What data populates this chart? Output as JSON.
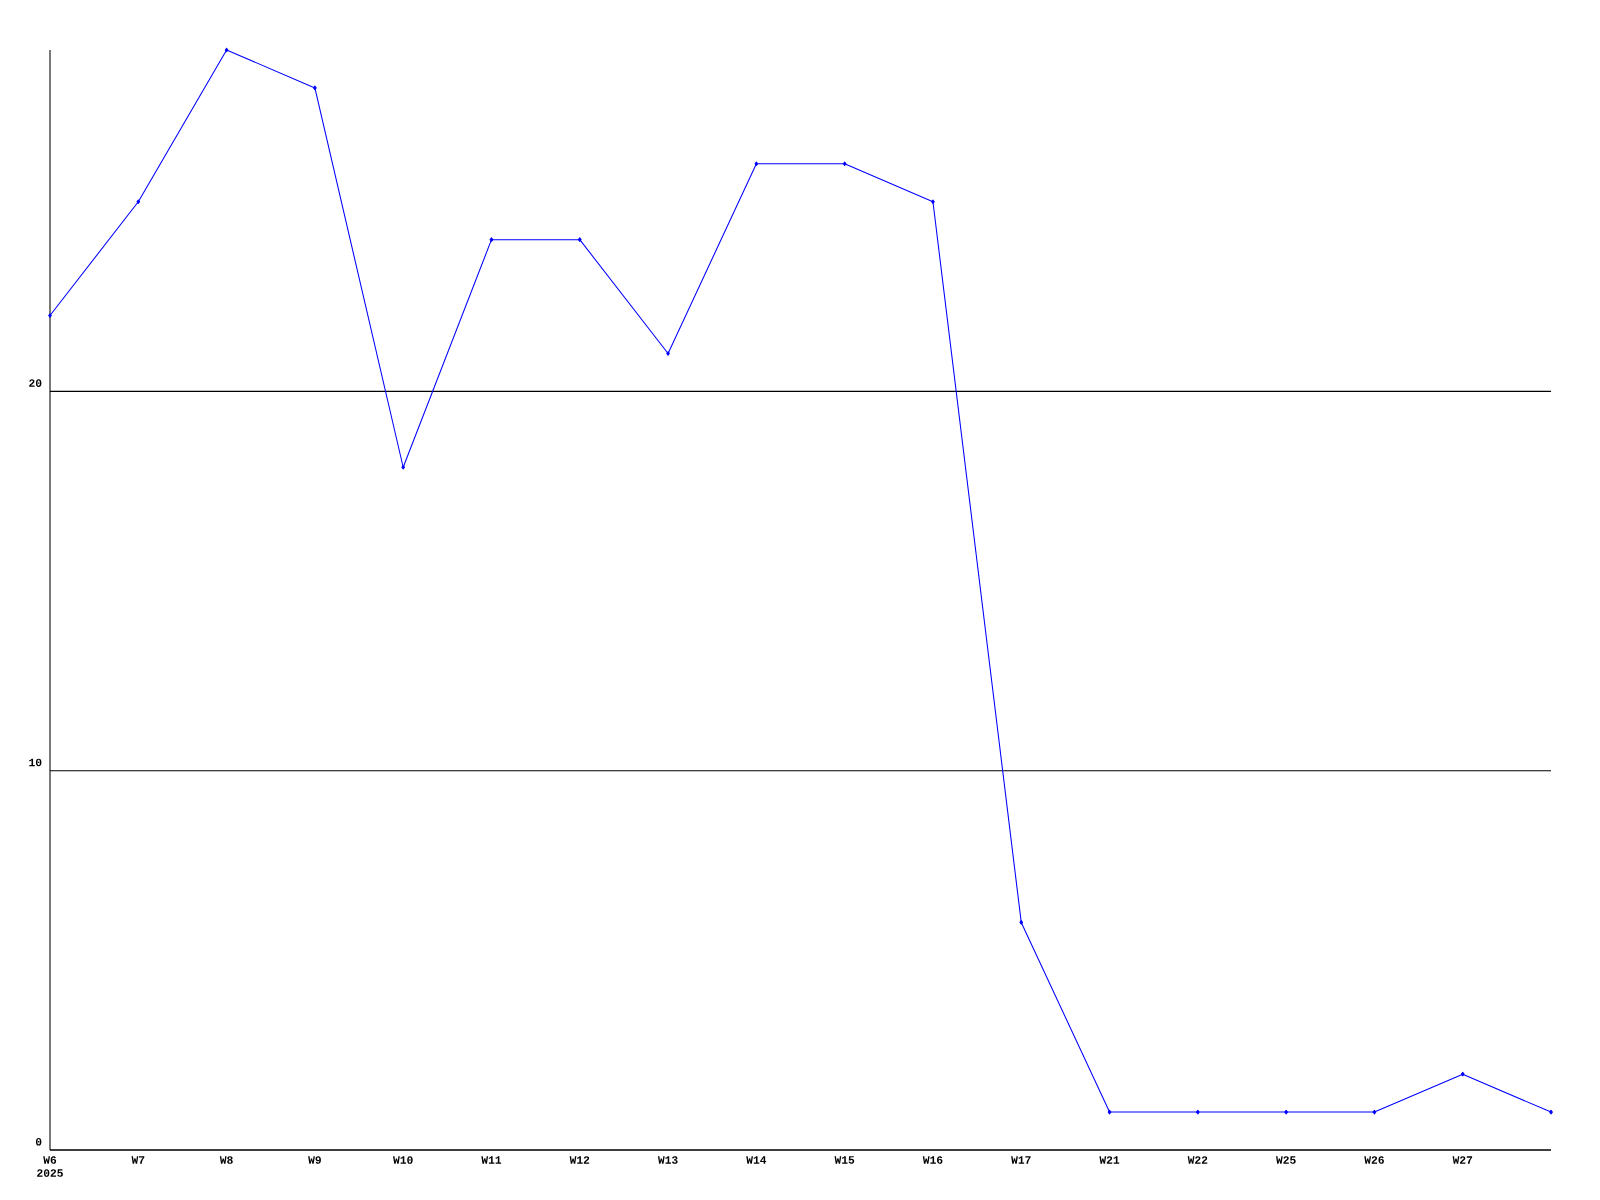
{
  "chart_data": {
    "type": "line",
    "categories": [
      "W6",
      "W7",
      "W8",
      "W9",
      "W10",
      "W11",
      "W12",
      "W13",
      "W14",
      "W15",
      "W16",
      "W17",
      "W21",
      "W22",
      "W25",
      "W26",
      "W27",
      null
    ],
    "values": [
      22,
      25,
      29,
      28,
      18,
      24,
      24,
      21,
      26,
      26,
      25,
      6,
      1,
      1,
      1,
      1,
      2,
      1
    ],
    "color": "#0000ff",
    "marker": "diamond",
    "grid": "y",
    "ylim": [
      0,
      29
    ],
    "yticks": [
      0,
      10,
      20
    ],
    "annotations": [
      "2025"
    ]
  }
}
